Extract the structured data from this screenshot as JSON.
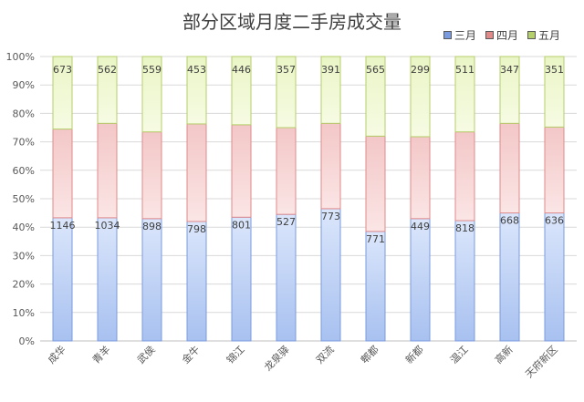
{
  "chart_data": {
    "type": "bar",
    "stacked": "percent",
    "title": "部分区域月度二手房成交量",
    "categories": [
      "成华",
      "青羊",
      "武侯",
      "金牛",
      "锦江",
      "龙泉驿",
      "双流",
      "郫都",
      "新都",
      "温江",
      "高新",
      "天府新区"
    ],
    "series": [
      {
        "name": "三月",
        "values": [
          1146,
          1034,
          898,
          798,
          801,
          527,
          773,
          771,
          449,
          818,
          668,
          636
        ],
        "percent_bottom_top": [
          0,
          43.3
        ],
        "fill_top": "#dbe6fb",
        "fill_bottom": "#a8c1f0",
        "stroke": "#7a9be0"
      },
      {
        "name": "四月",
        "values": [
          null,
          null,
          null,
          null,
          null,
          null,
          null,
          null,
          null,
          null,
          null,
          null
        ],
        "fill_top": "#f3c7c7",
        "fill_bottom": "#fbe5e5",
        "stroke": "#e08a8a"
      },
      {
        "name": "五月",
        "values": [
          673,
          562,
          559,
          453,
          446,
          357,
          391,
          565,
          299,
          511,
          347,
          351
        ],
        "fill_top": "#eaf5c6",
        "fill_bottom": "#f6fbe3",
        "stroke": "#b5cf6a"
      }
    ],
    "boundaries_percent": {
      "lower": [
        43.3,
        43.3,
        43.0,
        42.0,
        43.5,
        44.5,
        46.5,
        38.5,
        43.0,
        42.3,
        45.0,
        45.0
      ],
      "upper": [
        74.5,
        76.5,
        73.5,
        76.3,
        76.0,
        75.0,
        76.5,
        72.0,
        71.8,
        73.5,
        76.5,
        75.2
      ]
    },
    "ylim": [
      0,
      100
    ],
    "yticks": [
      "0%",
      "10%",
      "20%",
      "30%",
      "40%",
      "50%",
      "60%",
      "70%",
      "80%",
      "90%",
      "100%"
    ],
    "grid": true,
    "legend": "top-right"
  }
}
